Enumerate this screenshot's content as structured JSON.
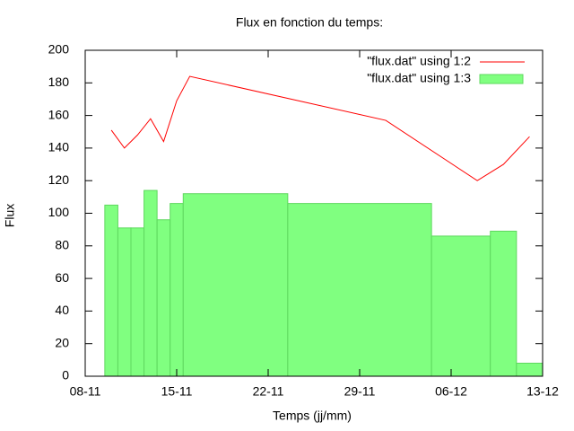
{
  "chart_data": {
    "type": "combo",
    "title": "Flux en fonction du temps:",
    "x_label": "Temps (jj/mm)",
    "y_label": "Flux",
    "x": [
      "10-11",
      "11-11",
      "12-11",
      "13-11",
      "14-11",
      "15-11",
      "16-11",
      "01-12",
      "08-12",
      "10-12",
      "12-12"
    ],
    "series": [
      {
        "name": "\"flux.dat\" using 1:2",
        "style": "line",
        "color": "#ff0000",
        "values": [
          151,
          140,
          148,
          158,
          144,
          169,
          184,
          157,
          120,
          130,
          147
        ]
      },
      {
        "name": "\"flux.dat\" using 1:3",
        "style": "boxes",
        "color": "#80ff80",
        "values": [
          105,
          91,
          91,
          114,
          96,
          106,
          112,
          106,
          86,
          89,
          8
        ]
      }
    ],
    "xlim": [
      "08-11",
      "13-12"
    ],
    "xticks": [
      "08-11",
      "15-11",
      "22-11",
      "29-11",
      "06-12",
      "13-12"
    ],
    "ylim": [
      0,
      200
    ],
    "yticks": [
      0,
      20,
      40,
      60,
      80,
      100,
      120,
      140,
      160,
      180,
      200
    ],
    "legend": "top right",
    "grid": false
  }
}
